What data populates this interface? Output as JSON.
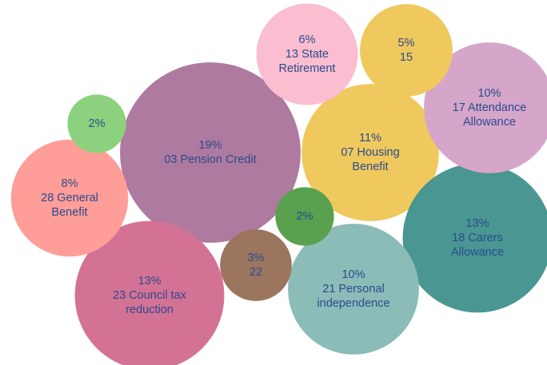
{
  "chart_data": {
    "type": "bubble",
    "categories": [
      "03 Pension Credit",
      "07 Housing Benefit",
      "18 Carers Allowance",
      "23 Council tax reduction",
      "21 Personal independence",
      "17 Attendance Allowance",
      "28 General Benefit",
      "13 State Retirement",
      "15",
      "22",
      null,
      null
    ],
    "values": [
      19,
      11,
      13,
      13,
      10,
      10,
      8,
      6,
      5,
      3,
      2,
      2
    ],
    "value_labels": [
      "19%",
      "11%",
      "13%",
      "13%",
      "10%",
      "10%",
      "8%",
      "6%",
      "5%",
      "3%",
      "2%",
      "2%"
    ],
    "colors": [
      "#ae7a9f",
      "#f0c95e",
      "#4a9692",
      "#d47295",
      "#8bbcb7",
      "#d5a6c9",
      "#ff9d98",
      "#fbbdd0",
      "#f0c95e",
      "#9c755f",
      "#59a14f",
      "#8cd17d"
    ]
  }
}
